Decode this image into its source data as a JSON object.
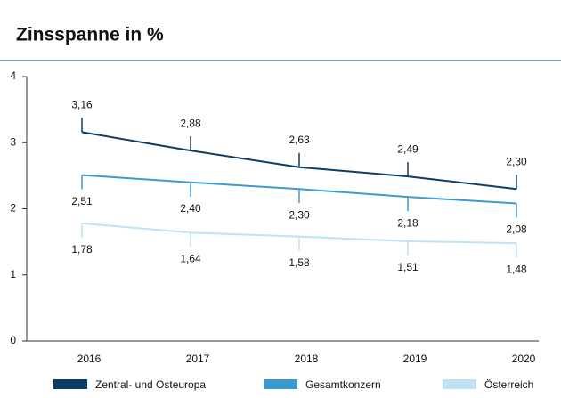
{
  "chart_data": {
    "type": "line",
    "title": "Zinsspanne in %",
    "categories": [
      "2016",
      "2017",
      "2018",
      "2019",
      "2020"
    ],
    "series": [
      {
        "name": "Zentral- und Osteuropa",
        "color": "#0b3d66",
        "values": [
          3.16,
          2.88,
          2.63,
          2.49,
          2.3
        ],
        "value_labels": [
          "3,16",
          "2,88",
          "2,63",
          "2,49",
          "2,30"
        ],
        "label_position": "above"
      },
      {
        "name": "Gesamtkonzern",
        "color": "#3a9bd1",
        "values": [
          2.51,
          2.4,
          2.3,
          2.18,
          2.08
        ],
        "value_labels": [
          "2,51",
          "2,40",
          "2,30",
          "2,18",
          "2,08"
        ],
        "label_position": "below"
      },
      {
        "name": "Österreich",
        "color": "#bde3f5",
        "values": [
          1.78,
          1.64,
          1.58,
          1.51,
          1.48
        ],
        "value_labels": [
          "1,78",
          "1,64",
          "1,58",
          "1,51",
          "1,48"
        ],
        "label_position": "below"
      }
    ],
    "ylim": [
      0,
      4
    ],
    "yticks": [
      0,
      1,
      2,
      3,
      4
    ],
    "legend": "bottom"
  }
}
